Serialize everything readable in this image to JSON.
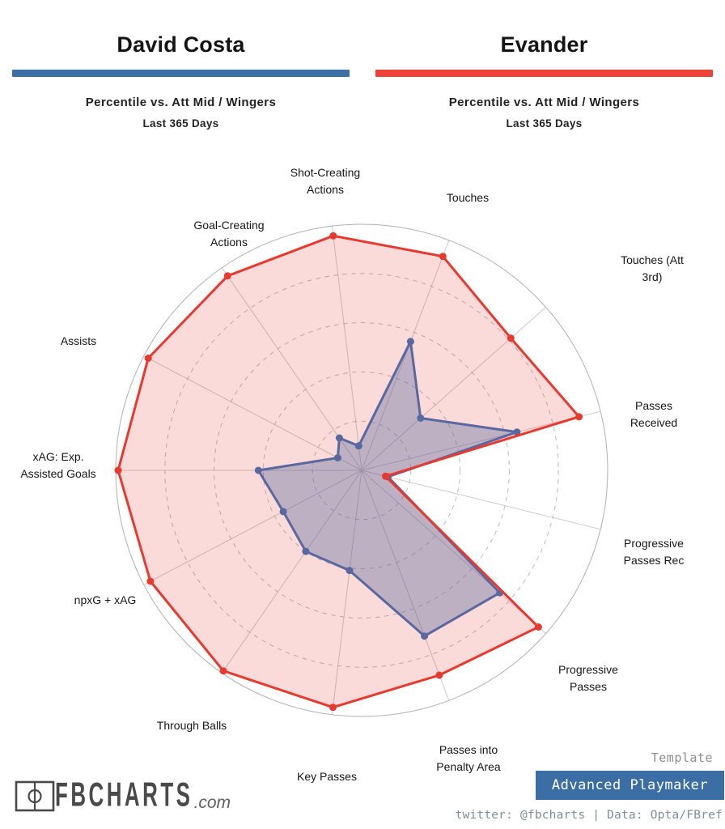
{
  "page": {
    "background": "#ffffff"
  },
  "players": [
    {
      "name": "David Costa",
      "accent_color": "#3c6fa5",
      "subtitle": "Percentile vs. Att Mid / Wingers",
      "period": "Last 365 Days"
    },
    {
      "name": "Evander",
      "accent_color": "#ee4137",
      "subtitle": "Percentile vs. Att Mid / Wingers",
      "period": "Last 365 Days"
    }
  ],
  "chart_data": {
    "type": "radar",
    "categories": [
      "Shot-Creating\nActions",
      "Touches",
      "Touches (Att\n3rd)",
      "Passes\nReceived",
      "Progressive\nPasses Rec",
      "Progressive\nPasses",
      "Passes into\nPenalty Area",
      "Key Passes",
      "Through Balls",
      "npxG + xAG",
      "xAG: Exp.\nAssisted Goals",
      "Assists",
      "Goal-Creating\nActions"
    ],
    "series": [
      {
        "name": "David Costa",
        "color": "#5a68a0",
        "values": [
          10,
          56,
          32,
          65,
          11,
          75,
          72,
          41,
          40,
          36,
          42,
          11,
          16
        ]
      },
      {
        "name": "Evander",
        "color": "#e8392f",
        "values": [
          96,
          93,
          81,
          91,
          10,
          96,
          89,
          97,
          99,
          97,
          99,
          98,
          96
        ]
      }
    ],
    "rlim": [
      0,
      100
    ],
    "rings": [
      20,
      40,
      60,
      80,
      100
    ],
    "grid": "circular-dashed",
    "legend_position": "none"
  },
  "footer": {
    "logo_text": "FBCHARTS",
    "logo_suffix": ".com",
    "template_label": "Template",
    "template_name": "Advanced Playmaker",
    "template_box_color": "#3b6ea5",
    "credits": "twitter: @fbcharts | Data: Opta/FBref"
  }
}
